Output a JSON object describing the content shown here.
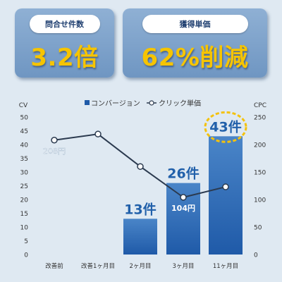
{
  "kpis": {
    "inquiries": {
      "label": "問合せ件数",
      "value": "3.2倍"
    },
    "unit_price": {
      "label": "獲得単価",
      "value": "62%削減"
    }
  },
  "colors": {
    "bar_top": "#4a85c8",
    "bar_bottom": "#1f5aa8",
    "line": "#2b3a4f",
    "highlight_dash": "#f4c20d",
    "label_blue": "#2160aa"
  },
  "chart_data": {
    "type": "bar",
    "categories": [
      "改善前",
      "改善1ヶ月目",
      "2ヶ月目",
      "3ヶ月目",
      "11ヶ月目"
    ],
    "series": [
      {
        "name": "コンバージョン",
        "type": "bar",
        "axis": "left",
        "values": [
          0,
          0,
          13,
          26,
          43
        ],
        "data_labels": [
          "",
          "",
          "13件",
          "26件",
          "43件"
        ]
      },
      {
        "name": "クリック単価",
        "type": "line",
        "axis": "right",
        "values": [
          208,
          219,
          160,
          104,
          123
        ],
        "data_labels": [
          "208円",
          "",
          "",
          "104円",
          ""
        ]
      }
    ],
    "y_left": {
      "label": "CV",
      "range": [
        0,
        50
      ],
      "ticks": [
        0,
        5,
        10,
        15,
        20,
        25,
        30,
        35,
        40,
        45,
        50
      ]
    },
    "y_right": {
      "label": "CPC",
      "range": [
        0,
        250
      ],
      "ticks": [
        0,
        50,
        100,
        150,
        200,
        250
      ]
    },
    "legend": {
      "placement": "top"
    },
    "highlight": "43件"
  }
}
